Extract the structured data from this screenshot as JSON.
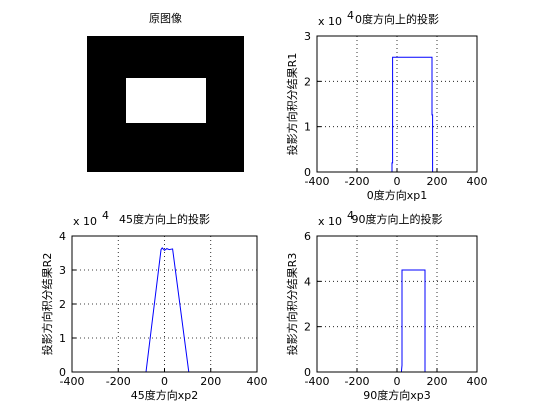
{
  "chart_data": [
    {
      "type": "image",
      "title": "原图像"
    },
    {
      "type": "line",
      "title": "0度方向上的投影",
      "xlabel": "0度方向xp1",
      "ylabel": "投影方向积分结果R1",
      "ymultiplier": {
        "base": "x 10",
        "exponent": "4"
      },
      "x": [
        -400,
        -25,
        -25,
        -22,
        -22,
        175,
        175,
        178,
        178,
        400
      ],
      "values": [
        0,
        0,
        0.2,
        0.2,
        2.53,
        2.53,
        1.26,
        1.26,
        0,
        0
      ],
      "color": "#0000ff",
      "xlim": [
        -400,
        400
      ],
      "xticks": [
        -400,
        -200,
        0,
        200,
        400
      ],
      "ylim": [
        0,
        3
      ],
      "yticks": [
        0,
        1,
        2,
        3
      ],
      "grid": true
    },
    {
      "type": "line",
      "title": "45度方向上的投影",
      "xlabel": "45度方向xp2",
      "ylabel": "投影方向积分结果R2",
      "ymultiplier": {
        "base": "x 10",
        "exponent": "4"
      },
      "x": [
        -400,
        -80,
        -15,
        -10,
        0,
        10,
        20,
        35,
        105,
        400
      ],
      "values": [
        0,
        0,
        3.6,
        3.65,
        3.58,
        3.63,
        3.6,
        3.62,
        0,
        0
      ],
      "color": "#0000ff",
      "xlim": [
        -400,
        400
      ],
      "xticks": [
        -400,
        -200,
        0,
        200,
        400
      ],
      "ylim": [
        0,
        4
      ],
      "yticks": [
        0,
        1,
        2,
        3,
        4
      ],
      "grid": true
    },
    {
      "type": "line",
      "title": "90度方向上的投影",
      "xlabel": "90度方向xp3",
      "ylabel": "投影方向积分结果R3",
      "ymultiplier": {
        "base": "x 10",
        "exponent": "4"
      },
      "x": [
        -400,
        22,
        25,
        25,
        140,
        140,
        400
      ],
      "values": [
        0,
        0,
        0.3,
        4.5,
        4.5,
        0,
        0
      ],
      "color": "#0000ff",
      "xlim": [
        -400,
        400
      ],
      "xticks": [
        -400,
        -200,
        0,
        200,
        400
      ],
      "ylim": [
        0,
        6
      ],
      "yticks": [
        0,
        2,
        4,
        6
      ],
      "grid": true
    }
  ]
}
